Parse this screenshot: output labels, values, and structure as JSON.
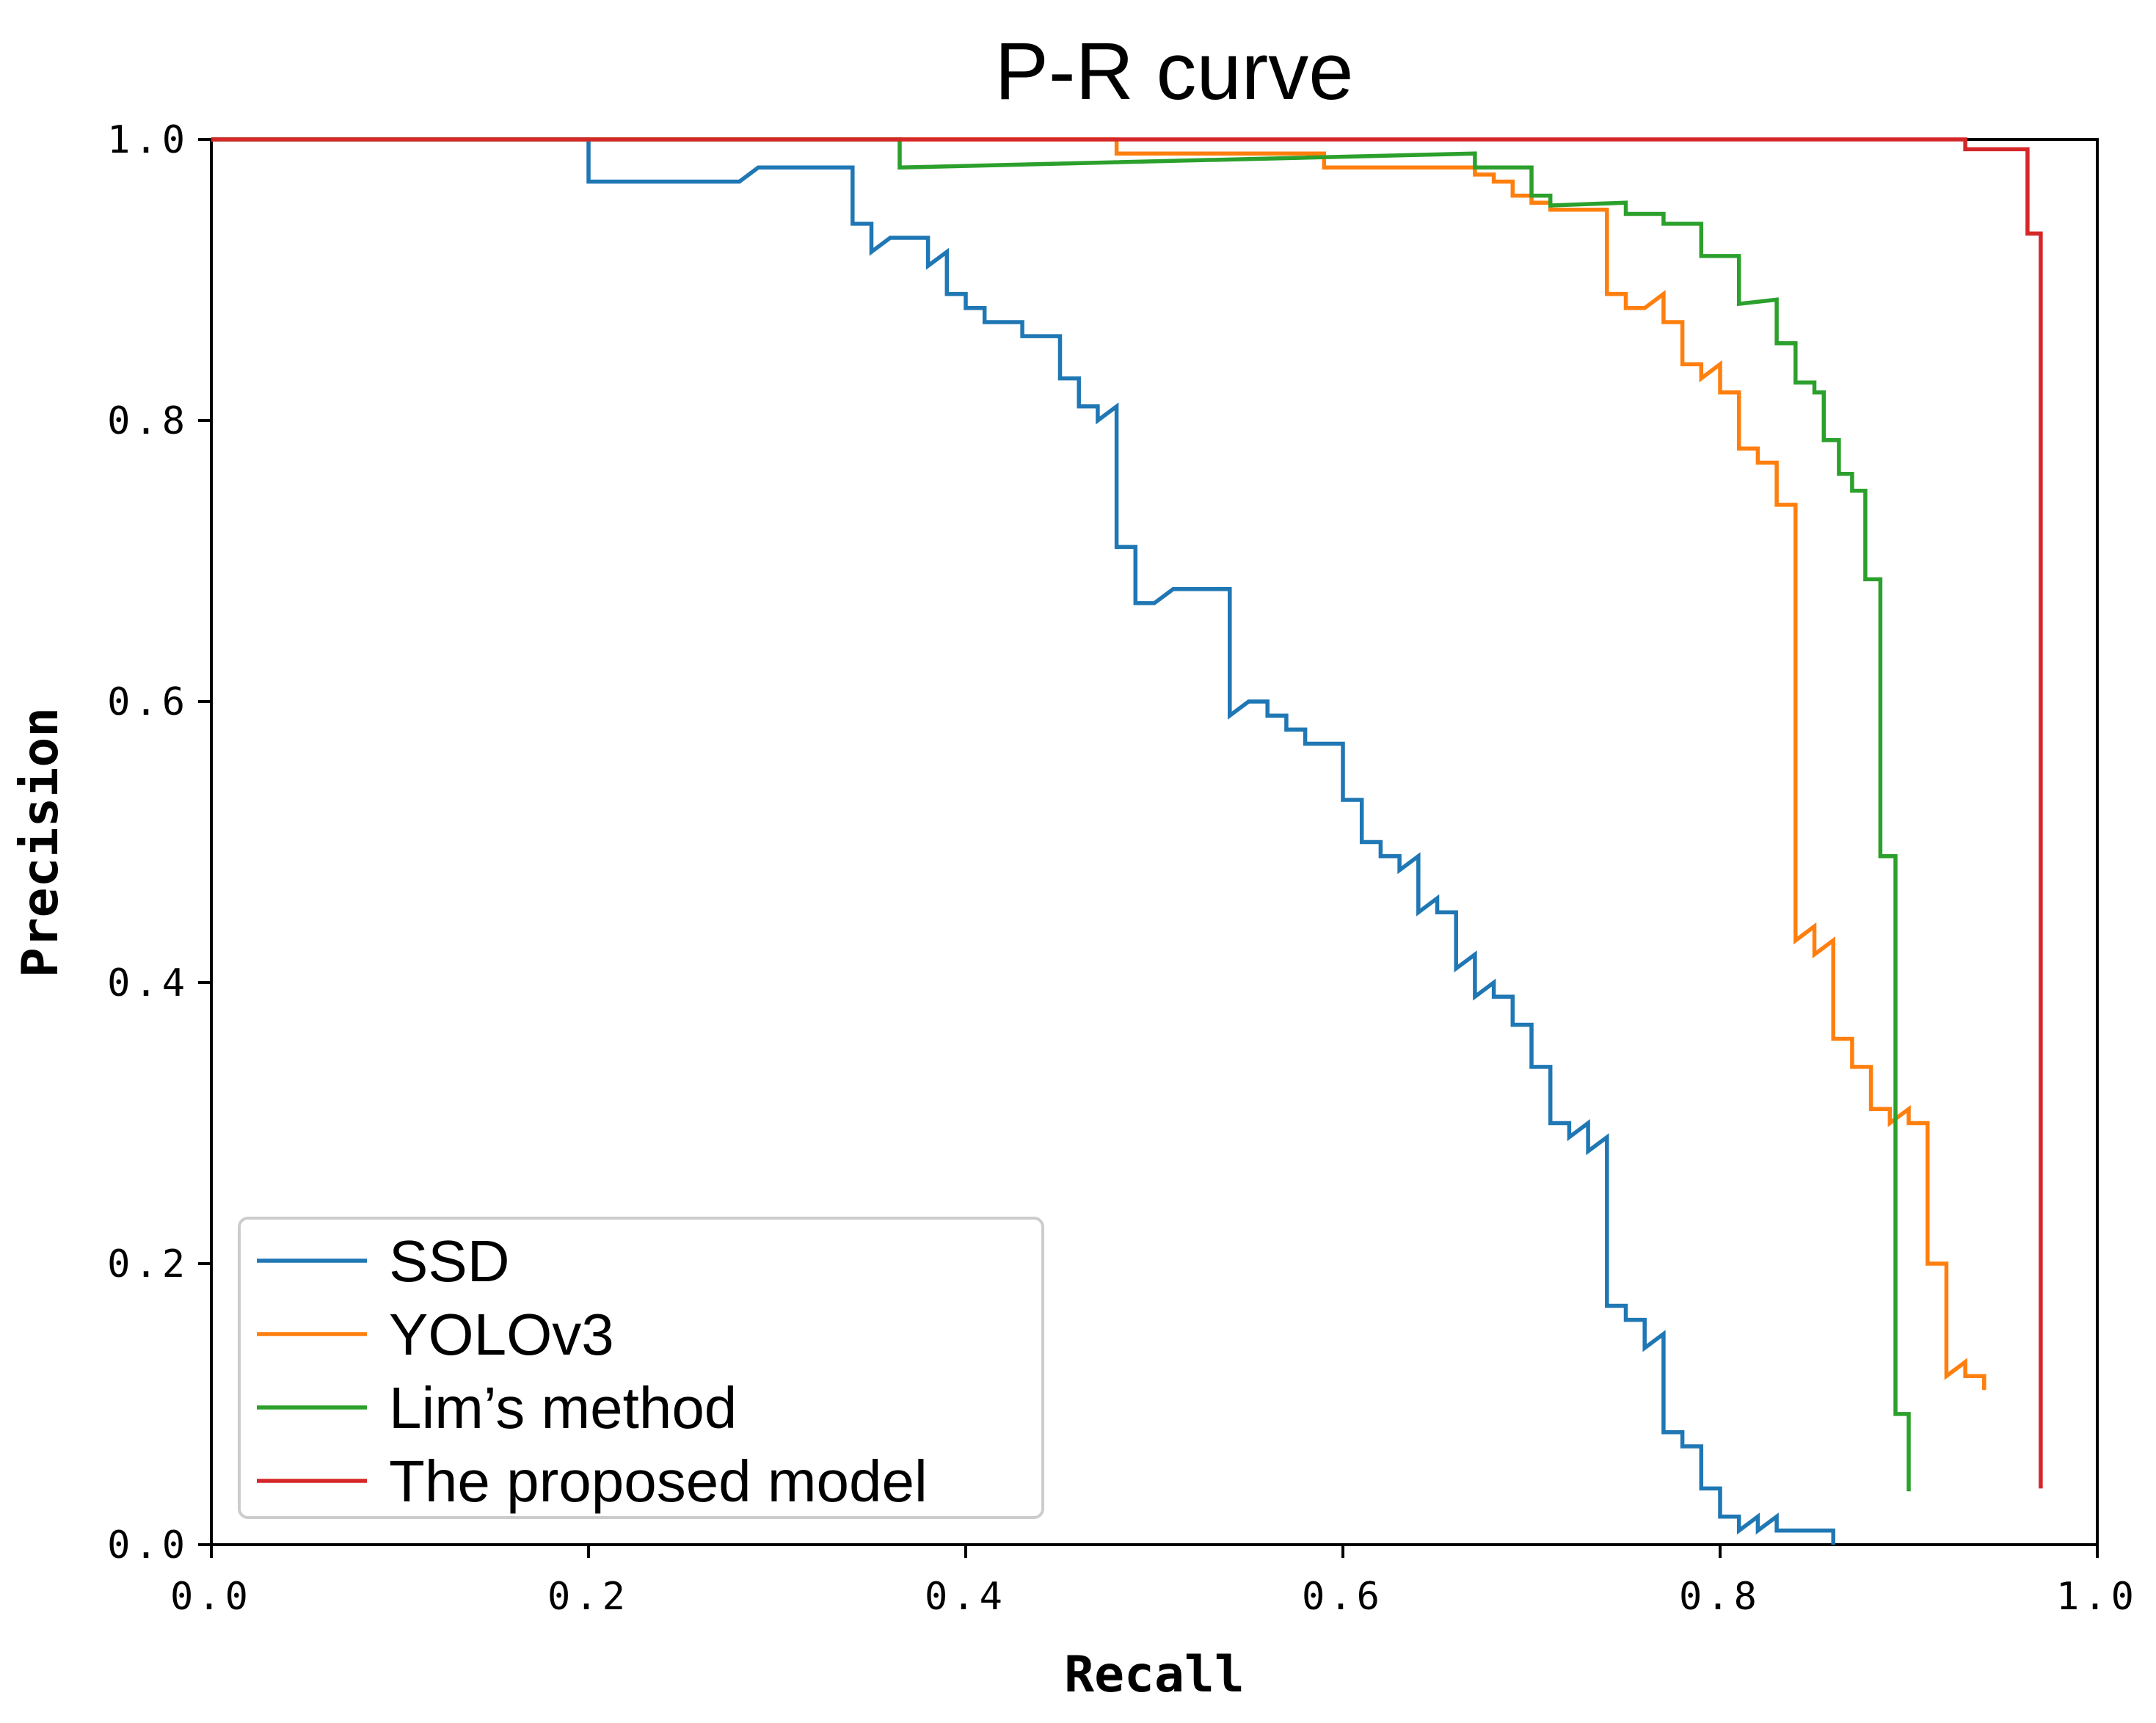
{
  "chart_data": {
    "type": "line",
    "title": "P-R curve",
    "xlabel": "Recall",
    "ylabel": "Precision",
    "xlim": [
      0.0,
      1.0
    ],
    "ylim": [
      0.0,
      1.0
    ],
    "xticks": [
      "0.0",
      "0.2",
      "0.4",
      "0.6",
      "0.8",
      "1.0"
    ],
    "yticks": [
      "0.0",
      "0.2",
      "0.4",
      "0.6",
      "0.8",
      "1.0"
    ],
    "xtick_values": [
      0.0,
      0.2,
      0.4,
      0.6,
      0.8,
      1.0
    ],
    "ytick_values": [
      0.0,
      0.2,
      0.4,
      0.6,
      0.8,
      1.0
    ],
    "grid": false,
    "legend_position": "lower-left",
    "series": [
      {
        "name": "SSD",
        "color": "#1f77b4",
        "points": [
          [
            0.0,
            1.0
          ],
          [
            0.2,
            1.0
          ],
          [
            0.2,
            0.97
          ],
          [
            0.28,
            0.97
          ],
          [
            0.29,
            0.98
          ],
          [
            0.34,
            0.98
          ],
          [
            0.34,
            0.94
          ],
          [
            0.35,
            0.94
          ],
          [
            0.35,
            0.92
          ],
          [
            0.36,
            0.93
          ],
          [
            0.38,
            0.93
          ],
          [
            0.38,
            0.91
          ],
          [
            0.39,
            0.92
          ],
          [
            0.39,
            0.89
          ],
          [
            0.4,
            0.89
          ],
          [
            0.4,
            0.88
          ],
          [
            0.41,
            0.88
          ],
          [
            0.41,
            0.87
          ],
          [
            0.43,
            0.87
          ],
          [
            0.43,
            0.86
          ],
          [
            0.45,
            0.86
          ],
          [
            0.45,
            0.83
          ],
          [
            0.46,
            0.83
          ],
          [
            0.46,
            0.81
          ],
          [
            0.47,
            0.81
          ],
          [
            0.47,
            0.8
          ],
          [
            0.48,
            0.81
          ],
          [
            0.48,
            0.71
          ],
          [
            0.49,
            0.71
          ],
          [
            0.49,
            0.67
          ],
          [
            0.5,
            0.67
          ],
          [
            0.51,
            0.68
          ],
          [
            0.54,
            0.68
          ],
          [
            0.54,
            0.59
          ],
          [
            0.55,
            0.6
          ],
          [
            0.56,
            0.6
          ],
          [
            0.56,
            0.59
          ],
          [
            0.57,
            0.59
          ],
          [
            0.57,
            0.58
          ],
          [
            0.58,
            0.58
          ],
          [
            0.58,
            0.57
          ],
          [
            0.6,
            0.57
          ],
          [
            0.6,
            0.53
          ],
          [
            0.61,
            0.53
          ],
          [
            0.61,
            0.5
          ],
          [
            0.62,
            0.5
          ],
          [
            0.62,
            0.49
          ],
          [
            0.63,
            0.49
          ],
          [
            0.63,
            0.48
          ],
          [
            0.64,
            0.49
          ],
          [
            0.64,
            0.45
          ],
          [
            0.65,
            0.46
          ],
          [
            0.65,
            0.45
          ],
          [
            0.66,
            0.45
          ],
          [
            0.66,
            0.41
          ],
          [
            0.67,
            0.42
          ],
          [
            0.67,
            0.39
          ],
          [
            0.68,
            0.4
          ],
          [
            0.68,
            0.39
          ],
          [
            0.69,
            0.39
          ],
          [
            0.69,
            0.37
          ],
          [
            0.7,
            0.37
          ],
          [
            0.7,
            0.34
          ],
          [
            0.71,
            0.34
          ],
          [
            0.71,
            0.3
          ],
          [
            0.72,
            0.3
          ],
          [
            0.72,
            0.29
          ],
          [
            0.73,
            0.3
          ],
          [
            0.73,
            0.28
          ],
          [
            0.74,
            0.29
          ],
          [
            0.74,
            0.17
          ],
          [
            0.75,
            0.17
          ],
          [
            0.75,
            0.16
          ],
          [
            0.76,
            0.16
          ],
          [
            0.76,
            0.14
          ],
          [
            0.77,
            0.15
          ],
          [
            0.77,
            0.08
          ],
          [
            0.78,
            0.08
          ],
          [
            0.78,
            0.07
          ],
          [
            0.79,
            0.07
          ],
          [
            0.79,
            0.04
          ],
          [
            0.8,
            0.04
          ],
          [
            0.8,
            0.02
          ],
          [
            0.81,
            0.02
          ],
          [
            0.81,
            0.01
          ],
          [
            0.82,
            0.02
          ],
          [
            0.82,
            0.01
          ],
          [
            0.83,
            0.02
          ],
          [
            0.83,
            0.01
          ],
          [
            0.86,
            0.01
          ],
          [
            0.86,
            0.0
          ]
        ]
      },
      {
        "name": "YOLOv3",
        "color": "#ff7f0e",
        "points": [
          [
            0.0,
            1.0
          ],
          [
            0.48,
            1.0
          ],
          [
            0.48,
            0.99
          ],
          [
            0.59,
            0.99
          ],
          [
            0.59,
            0.98
          ],
          [
            0.67,
            0.98
          ],
          [
            0.67,
            0.975
          ],
          [
            0.68,
            0.975
          ],
          [
            0.68,
            0.97
          ],
          [
            0.69,
            0.97
          ],
          [
            0.69,
            0.96
          ],
          [
            0.7,
            0.96
          ],
          [
            0.7,
            0.955
          ],
          [
            0.71,
            0.955
          ],
          [
            0.71,
            0.95
          ],
          [
            0.74,
            0.95
          ],
          [
            0.74,
            0.89
          ],
          [
            0.75,
            0.89
          ],
          [
            0.75,
            0.88
          ],
          [
            0.76,
            0.88
          ],
          [
            0.77,
            0.89
          ],
          [
            0.77,
            0.87
          ],
          [
            0.78,
            0.87
          ],
          [
            0.78,
            0.84
          ],
          [
            0.79,
            0.84
          ],
          [
            0.79,
            0.83
          ],
          [
            0.8,
            0.84
          ],
          [
            0.8,
            0.82
          ],
          [
            0.81,
            0.82
          ],
          [
            0.81,
            0.78
          ],
          [
            0.82,
            0.78
          ],
          [
            0.82,
            0.77
          ],
          [
            0.83,
            0.77
          ],
          [
            0.83,
            0.74
          ],
          [
            0.84,
            0.74
          ],
          [
            0.84,
            0.43
          ],
          [
            0.85,
            0.44
          ],
          [
            0.85,
            0.42
          ],
          [
            0.86,
            0.43
          ],
          [
            0.86,
            0.36
          ],
          [
            0.87,
            0.36
          ],
          [
            0.87,
            0.34
          ],
          [
            0.88,
            0.34
          ],
          [
            0.88,
            0.31
          ],
          [
            0.89,
            0.31
          ],
          [
            0.89,
            0.3
          ],
          [
            0.9,
            0.31
          ],
          [
            0.9,
            0.3
          ],
          [
            0.91,
            0.3
          ],
          [
            0.91,
            0.2
          ],
          [
            0.92,
            0.2
          ],
          [
            0.92,
            0.12
          ],
          [
            0.93,
            0.13
          ],
          [
            0.93,
            0.12
          ],
          [
            0.94,
            0.12
          ],
          [
            0.94,
            0.11
          ]
        ]
      },
      {
        "name": "Lim’s method",
        "color": "#2ca02c",
        "points": [
          [
            0.0,
            1.0
          ],
          [
            0.365,
            1.0
          ],
          [
            0.365,
            0.98
          ],
          [
            0.67,
            0.99
          ],
          [
            0.67,
            0.98
          ],
          [
            0.7,
            0.98
          ],
          [
            0.7,
            0.96
          ],
          [
            0.71,
            0.96
          ],
          [
            0.71,
            0.953
          ],
          [
            0.75,
            0.955
          ],
          [
            0.75,
            0.947
          ],
          [
            0.77,
            0.947
          ],
          [
            0.77,
            0.94
          ],
          [
            0.79,
            0.94
          ],
          [
            0.79,
            0.917
          ],
          [
            0.81,
            0.917
          ],
          [
            0.81,
            0.883
          ],
          [
            0.83,
            0.886
          ],
          [
            0.83,
            0.855
          ],
          [
            0.84,
            0.855
          ],
          [
            0.84,
            0.827
          ],
          [
            0.85,
            0.827
          ],
          [
            0.85,
            0.82
          ],
          [
            0.855,
            0.82
          ],
          [
            0.855,
            0.786
          ],
          [
            0.863,
            0.786
          ],
          [
            0.863,
            0.762
          ],
          [
            0.87,
            0.762
          ],
          [
            0.87,
            0.75
          ],
          [
            0.877,
            0.75
          ],
          [
            0.877,
            0.687
          ],
          [
            0.885,
            0.687
          ],
          [
            0.885,
            0.49
          ],
          [
            0.893,
            0.49
          ],
          [
            0.893,
            0.093
          ],
          [
            0.9,
            0.093
          ],
          [
            0.9,
            0.038
          ]
        ]
      },
      {
        "name": "The proposed model",
        "color": "#d62728",
        "points": [
          [
            0.0,
            1.0
          ],
          [
            0.93,
            1.0
          ],
          [
            0.93,
            0.993
          ],
          [
            0.963,
            0.993
          ],
          [
            0.963,
            0.933
          ],
          [
            0.97,
            0.933
          ],
          [
            0.97,
            0.04
          ]
        ]
      }
    ]
  }
}
